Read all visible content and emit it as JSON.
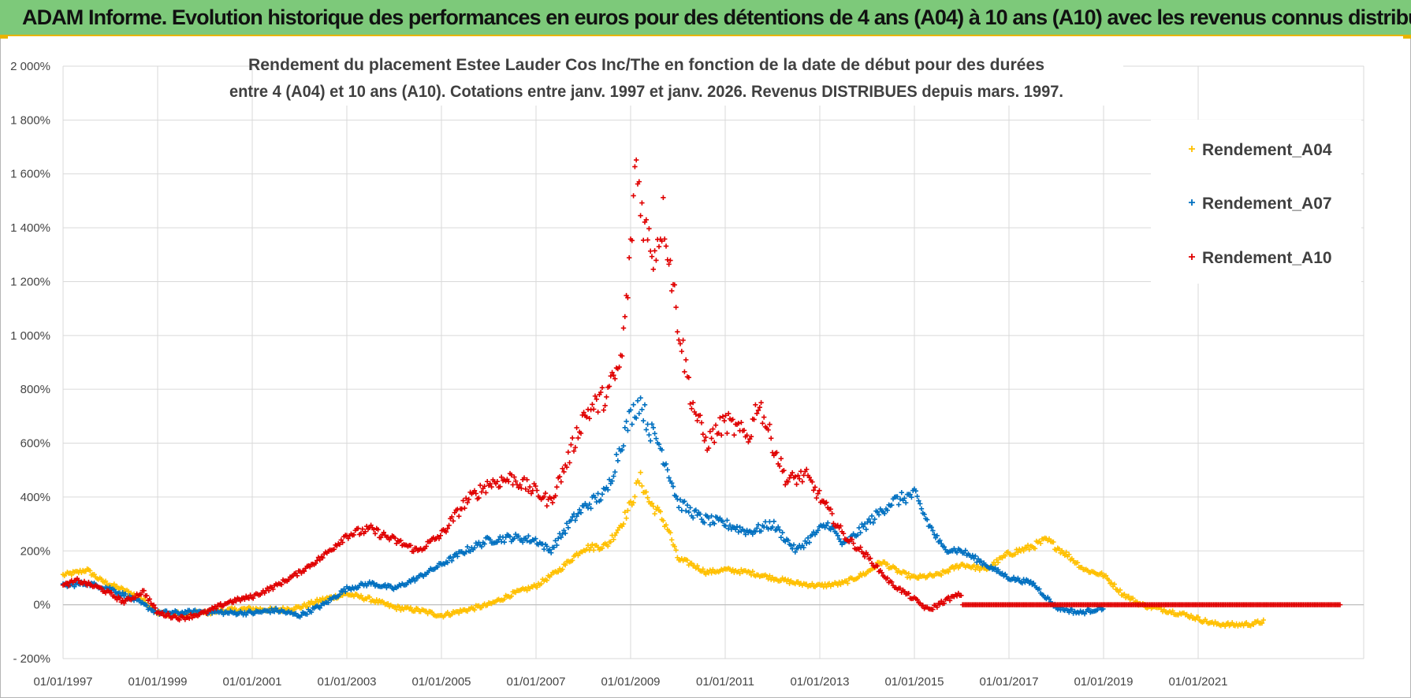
{
  "banner": {
    "title": "ADAM Informe. Evolution historique des performances en euros pour des détentions de 4 ans (A04) à 10 ans (A10) avec les revenus connus distribués"
  },
  "colors": {
    "banner_bg": "#7dc97a",
    "accent": "#e8b400",
    "A04": "#ffc000",
    "A07": "#0070c0",
    "A10": "#e00000"
  },
  "chart_data": {
    "type": "scatter",
    "title_line1": "Rendement du placement Estee Lauder Cos Inc/The en fonction de la date de début pour des durées",
    "title_line2": "entre 4 (A04) et 10 ans (A10).  Cotations entre janv. 1997 et janv. 2026. Revenus DISTRIBUES depuis mars. 1997.",
    "xlabel": "",
    "ylabel": "",
    "ylim": [
      -200,
      2000
    ],
    "xlim": [
      1997.0,
      2024.0
    ],
    "grid": true,
    "legend_position": "top-right",
    "y_ticks": [
      -200,
      0,
      200,
      400,
      600,
      800,
      1000,
      1200,
      1400,
      1600,
      1800,
      2000
    ],
    "y_tick_labels": [
      "- 200%",
      "0%",
      "200%",
      "400%",
      "600%",
      "800%",
      "1 000%",
      "1 200%",
      "1 400%",
      "1 600%",
      "1 800%",
      "2 000%"
    ],
    "x_ticks": [
      1997,
      1999,
      2001,
      2003,
      2005,
      2007,
      2009,
      2011,
      2013,
      2015,
      2017,
      2019,
      2021
    ],
    "x_tick_labels": [
      "01/01/1997",
      "01/01/1999",
      "01/01/2001",
      "01/01/2003",
      "01/01/2005",
      "01/01/2007",
      "01/01/2009",
      "01/01/2011",
      "01/01/2013",
      "01/01/2015",
      "01/01/2017",
      "01/01/2019",
      "01/01/2021"
    ],
    "series": [
      {
        "name": "Rendement_A04",
        "color": "#ffc000",
        "points": [
          [
            1997.0,
            110
          ],
          [
            1997.3,
            120
          ],
          [
            1997.5,
            130
          ],
          [
            1997.8,
            90
          ],
          [
            1998.2,
            60
          ],
          [
            1998.6,
            30
          ],
          [
            1999.0,
            -30
          ],
          [
            1999.5,
            -35
          ],
          [
            2000.0,
            -30
          ],
          [
            2000.5,
            -20
          ],
          [
            2001.0,
            -15
          ],
          [
            2001.5,
            -20
          ],
          [
            2002.0,
            -10
          ],
          [
            2002.5,
            20
          ],
          [
            2003.0,
            40
          ],
          [
            2003.5,
            20
          ],
          [
            2004.0,
            -10
          ],
          [
            2004.5,
            -20
          ],
          [
            2005.0,
            -40
          ],
          [
            2005.5,
            -20
          ],
          [
            2006.0,
            0
          ],
          [
            2006.5,
            40
          ],
          [
            2007.0,
            70
          ],
          [
            2007.5,
            130
          ],
          [
            2008.0,
            210
          ],
          [
            2008.5,
            220
          ],
          [
            2008.8,
            300
          ],
          [
            2009.0,
            370
          ],
          [
            2009.2,
            470
          ],
          [
            2009.4,
            380
          ],
          [
            2009.6,
            340
          ],
          [
            2009.8,
            280
          ],
          [
            2010.0,
            170
          ],
          [
            2010.3,
            150
          ],
          [
            2010.6,
            120
          ],
          [
            2011.0,
            130
          ],
          [
            2011.5,
            120
          ],
          [
            2012.0,
            100
          ],
          [
            2012.5,
            80
          ],
          [
            2013.0,
            70
          ],
          [
            2013.5,
            80
          ],
          [
            2014.0,
            120
          ],
          [
            2014.3,
            160
          ],
          [
            2014.7,
            120
          ],
          [
            2015.0,
            100
          ],
          [
            2015.5,
            110
          ],
          [
            2016.0,
            150
          ],
          [
            2016.5,
            130
          ],
          [
            2017.0,
            190
          ],
          [
            2017.4,
            210
          ],
          [
            2017.8,
            240
          ],
          [
            2018.2,
            190
          ],
          [
            2018.6,
            130
          ],
          [
            2019.0,
            110
          ],
          [
            2019.4,
            40
          ],
          [
            2019.8,
            0
          ],
          [
            2020.3,
            -20
          ],
          [
            2020.8,
            -40
          ],
          [
            2021.3,
            -70
          ],
          [
            2021.8,
            -75
          ],
          [
            2022.2,
            -70
          ],
          [
            2022.4,
            -60
          ]
        ]
      },
      {
        "name": "Rendement_A07",
        "color": "#0070c0",
        "points": [
          [
            1997.0,
            70
          ],
          [
            1997.5,
            80
          ],
          [
            1998.0,
            60
          ],
          [
            1998.5,
            20
          ],
          [
            1999.0,
            -30
          ],
          [
            1999.5,
            -30
          ],
          [
            2000.0,
            -25
          ],
          [
            2000.5,
            -30
          ],
          [
            2001.0,
            -30
          ],
          [
            2001.5,
            -20
          ],
          [
            2002.0,
            -40
          ],
          [
            2002.5,
            0
          ],
          [
            2003.0,
            60
          ],
          [
            2003.5,
            80
          ],
          [
            2004.0,
            60
          ],
          [
            2004.5,
            100
          ],
          [
            2005.0,
            150
          ],
          [
            2005.5,
            200
          ],
          [
            2006.0,
            240
          ],
          [
            2006.5,
            250
          ],
          [
            2007.0,
            240
          ],
          [
            2007.3,
            200
          ],
          [
            2007.7,
            300
          ],
          [
            2008.0,
            360
          ],
          [
            2008.5,
            420
          ],
          [
            2008.8,
            600
          ],
          [
            2009.0,
            700
          ],
          [
            2009.2,
            760
          ],
          [
            2009.4,
            650
          ],
          [
            2009.6,
            600
          ],
          [
            2009.8,
            500
          ],
          [
            2010.0,
            380
          ],
          [
            2010.5,
            320
          ],
          [
            2011.0,
            300
          ],
          [
            2011.5,
            270
          ],
          [
            2012.0,
            300
          ],
          [
            2012.5,
            200
          ],
          [
            2013.0,
            280
          ],
          [
            2013.2,
            300
          ],
          [
            2013.5,
            220
          ],
          [
            2014.0,
            300
          ],
          [
            2014.5,
            380
          ],
          [
            2015.0,
            410
          ],
          [
            2015.3,
            300
          ],
          [
            2015.6,
            210
          ],
          [
            2016.0,
            200
          ],
          [
            2016.5,
            150
          ],
          [
            2017.0,
            100
          ],
          [
            2017.5,
            80
          ],
          [
            2018.0,
            -10
          ],
          [
            2018.5,
            -30
          ],
          [
            2019.0,
            -10
          ]
        ]
      },
      {
        "name": "Rendement_A10",
        "color": "#e00000",
        "points": [
          [
            1997.0,
            70
          ],
          [
            1997.3,
            90
          ],
          [
            1997.8,
            60
          ],
          [
            1998.3,
            10
          ],
          [
            1998.7,
            50
          ],
          [
            1999.0,
            -30
          ],
          [
            1999.5,
            -50
          ],
          [
            2000.0,
            -30
          ],
          [
            2000.5,
            10
          ],
          [
            2001.0,
            30
          ],
          [
            2001.5,
            70
          ],
          [
            2002.0,
            120
          ],
          [
            2002.5,
            180
          ],
          [
            2003.0,
            260
          ],
          [
            2003.5,
            280
          ],
          [
            2004.0,
            240
          ],
          [
            2004.5,
            200
          ],
          [
            2005.0,
            260
          ],
          [
            2005.5,
            380
          ],
          [
            2006.0,
            450
          ],
          [
            2006.5,
            470
          ],
          [
            2007.0,
            420
          ],
          [
            2007.3,
            380
          ],
          [
            2007.7,
            550
          ],
          [
            2008.0,
            700
          ],
          [
            2008.5,
            780
          ],
          [
            2008.8,
            900
          ],
          [
            2009.0,
            1300
          ],
          [
            2009.1,
            1650
          ],
          [
            2009.3,
            1400
          ],
          [
            2009.5,
            1300
          ],
          [
            2009.7,
            1450
          ],
          [
            2010.0,
            1050
          ],
          [
            2010.3,
            750
          ],
          [
            2010.6,
            600
          ],
          [
            2011.0,
            680
          ],
          [
            2011.5,
            620
          ],
          [
            2011.7,
            760
          ],
          [
            2012.0,
            600
          ],
          [
            2012.3,
            460
          ],
          [
            2012.7,
            480
          ],
          [
            2013.0,
            400
          ],
          [
            2013.5,
            260
          ],
          [
            2014.0,
            180
          ],
          [
            2014.5,
            80
          ],
          [
            2015.0,
            20
          ],
          [
            2015.3,
            -20
          ],
          [
            2015.7,
            20
          ],
          [
            2016.0,
            40
          ],
          [
            2016.0,
            0
          ],
          [
            2017.0,
            0
          ],
          [
            2018.0,
            0
          ],
          [
            2019.0,
            0
          ],
          [
            2020.0,
            0
          ],
          [
            2021.0,
            0
          ],
          [
            2022.0,
            0
          ],
          [
            2023.0,
            0
          ],
          [
            2024.0,
            0
          ]
        ]
      }
    ],
    "legend": [
      "Rendement_A04",
      "Rendement_A07",
      "Rendement_A10"
    ]
  }
}
